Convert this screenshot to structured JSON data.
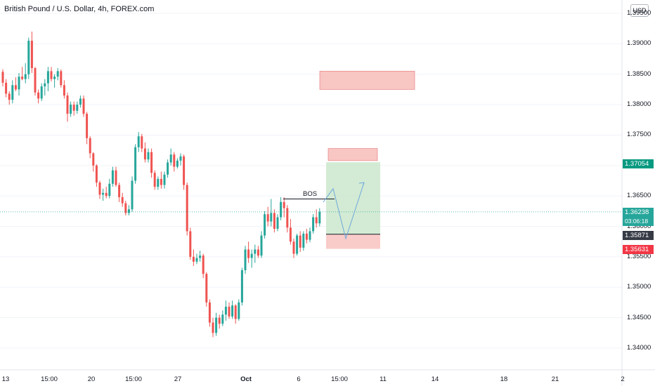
{
  "title": "British Pound / U.S. Dollar, 4h, FOREX.com",
  "currency": "USD",
  "annotation_label": "BOS",
  "colors": {
    "up": "#26a69a",
    "down": "#ef5350",
    "target_zone": "#c8e6c9",
    "stop_zone": "#f8c6c3",
    "current_price": "#26a69a",
    "entry_price": "#363a45",
    "stop_price": "#f23645",
    "target_price": "#089981",
    "path": "#6fa8dc"
  },
  "y_axis": {
    "labels": [
      "1.39500",
      "1.39000",
      "1.38500",
      "1.38000",
      "1.37500",
      "1.37000",
      "1.36500",
      "1.36000",
      "1.35500",
      "1.35000",
      "1.34500",
      "1.34000"
    ]
  },
  "x_axis": {
    "labels": [
      "13",
      "15:00",
      "20",
      "15:00",
      "27",
      "Oct",
      "6",
      "15:00",
      "11",
      "14",
      "18",
      "21",
      "2"
    ]
  },
  "price_labels": {
    "target": "1.37054",
    "current": "1.36238",
    "countdown": "03:06:18",
    "entry": "1.35871",
    "stop": "1.35631"
  },
  "chart_data": {
    "type": "candlestick",
    "symbol": "GBPUSD",
    "interval": "4h",
    "ylim": [
      1.3375,
      1.3982
    ],
    "candles": [
      [
        1.3854,
        1.3858,
        1.383,
        1.3836
      ],
      [
        1.3836,
        1.3842,
        1.3812,
        1.3818
      ],
      [
        1.3818,
        1.3822,
        1.38,
        1.3808
      ],
      [
        1.3808,
        1.384,
        1.3802,
        1.3832
      ],
      [
        1.3832,
        1.3845,
        1.3822,
        1.3825
      ],
      [
        1.3825,
        1.3852,
        1.3815,
        1.3846
      ],
      [
        1.3846,
        1.3862,
        1.384,
        1.3842
      ],
      [
        1.3842,
        1.3868,
        1.3835,
        1.385
      ],
      [
        1.385,
        1.391,
        1.3842,
        1.3905
      ],
      [
        1.3905,
        1.392,
        1.3852,
        1.386
      ],
      [
        1.386,
        1.3862,
        1.3815,
        1.382
      ],
      [
        1.382,
        1.3825,
        1.3802,
        1.381
      ],
      [
        1.381,
        1.3835,
        1.3806,
        1.383
      ],
      [
        1.383,
        1.3842,
        1.3815,
        1.3835
      ],
      [
        1.3835,
        1.3862,
        1.3822,
        1.3855
      ],
      [
        1.3855,
        1.3862,
        1.3838,
        1.3842
      ],
      [
        1.3842,
        1.385,
        1.3828,
        1.3846
      ],
      [
        1.3846,
        1.386,
        1.384,
        1.3855
      ],
      [
        1.3855,
        1.3858,
        1.3828,
        1.3832
      ],
      [
        1.3832,
        1.384,
        1.381,
        1.3815
      ],
      [
        1.3815,
        1.382,
        1.3772,
        1.3785
      ],
      [
        1.3785,
        1.3805,
        1.378,
        1.38
      ],
      [
        1.38,
        1.3805,
        1.3782,
        1.379
      ],
      [
        1.379,
        1.3805,
        1.3785,
        1.38
      ],
      [
        1.38,
        1.3815,
        1.3795,
        1.381
      ],
      [
        1.381,
        1.3815,
        1.378,
        1.3785
      ],
      [
        1.3785,
        1.3788,
        1.3735,
        1.3745
      ],
      [
        1.3745,
        1.3748,
        1.3712,
        1.372
      ],
      [
        1.372,
        1.3722,
        1.369,
        1.37
      ],
      [
        1.37,
        1.3702,
        1.3665,
        1.3672
      ],
      [
        1.3672,
        1.3675,
        1.3645,
        1.3652
      ],
      [
        1.3652,
        1.3662,
        1.3642,
        1.3655
      ],
      [
        1.3655,
        1.3665,
        1.3646,
        1.365
      ],
      [
        1.365,
        1.3678,
        1.3646,
        1.367
      ],
      [
        1.367,
        1.3698,
        1.3665,
        1.3692
      ],
      [
        1.3692,
        1.3698,
        1.3665,
        1.3668
      ],
      [
        1.3668,
        1.3672,
        1.364,
        1.3648
      ],
      [
        1.3648,
        1.3655,
        1.3632,
        1.3638
      ],
      [
        1.3638,
        1.3642,
        1.3618,
        1.3622
      ],
      [
        1.3622,
        1.3635,
        1.3618,
        1.3628
      ],
      [
        1.3628,
        1.3682,
        1.3624,
        1.3675
      ],
      [
        1.3675,
        1.3735,
        1.367,
        1.373
      ],
      [
        1.373,
        1.3755,
        1.3722,
        1.3748
      ],
      [
        1.3748,
        1.3752,
        1.3722,
        1.3728
      ],
      [
        1.3728,
        1.3738,
        1.3705,
        1.371
      ],
      [
        1.371,
        1.3728,
        1.3705,
        1.3722
      ],
      [
        1.3722,
        1.3728,
        1.368,
        1.3688
      ],
      [
        1.3688,
        1.3692,
        1.366,
        1.3665
      ],
      [
        1.3665,
        1.3682,
        1.366,
        1.3678
      ],
      [
        1.3678,
        1.369,
        1.3662,
        1.3668
      ],
      [
        1.3668,
        1.369,
        1.3662,
        1.3685
      ],
      [
        1.3685,
        1.371,
        1.368,
        1.3705
      ],
      [
        1.3705,
        1.3728,
        1.37,
        1.3718
      ],
      [
        1.3718,
        1.3722,
        1.369,
        1.3698
      ],
      [
        1.3698,
        1.3712,
        1.3695,
        1.3708
      ],
      [
        1.3708,
        1.372,
        1.37,
        1.3715
      ],
      [
        1.3715,
        1.3718,
        1.366,
        1.3668
      ],
      [
        1.3668,
        1.3672,
        1.3585,
        1.3592
      ],
      [
        1.3592,
        1.3598,
        1.3545,
        1.355
      ],
      [
        1.355,
        1.3562,
        1.3535,
        1.3542
      ],
      [
        1.3542,
        1.3555,
        1.3538,
        1.3548
      ],
      [
        1.3548,
        1.356,
        1.3542,
        1.3552
      ],
      [
        1.3552,
        1.3555,
        1.3515,
        1.3522
      ],
      [
        1.3522,
        1.3525,
        1.3468,
        1.3475
      ],
      [
        1.3475,
        1.348,
        1.3435,
        1.3442
      ],
      [
        1.3442,
        1.345,
        1.3418,
        1.3425
      ],
      [
        1.3425,
        1.3458,
        1.342,
        1.345
      ],
      [
        1.345,
        1.3455,
        1.3432,
        1.344
      ],
      [
        1.344,
        1.3462,
        1.3436,
        1.3455
      ],
      [
        1.3455,
        1.3478,
        1.3445,
        1.3468
      ],
      [
        1.3468,
        1.3475,
        1.3448,
        1.3452
      ],
      [
        1.3452,
        1.3478,
        1.3448,
        1.347
      ],
      [
        1.347,
        1.3472,
        1.344,
        1.3448
      ],
      [
        1.3448,
        1.348,
        1.3445,
        1.3475
      ],
      [
        1.3475,
        1.3532,
        1.347,
        1.3528
      ],
      [
        1.3528,
        1.3568,
        1.3522,
        1.3562
      ],
      [
        1.3562,
        1.3575,
        1.354,
        1.3548
      ],
      [
        1.3548,
        1.3562,
        1.3532,
        1.3555
      ],
      [
        1.3555,
        1.357,
        1.354,
        1.3562
      ],
      [
        1.3562,
        1.3568,
        1.3548,
        1.3552
      ],
      [
        1.3552,
        1.3592,
        1.3548,
        1.3585
      ],
      [
        1.3585,
        1.3625,
        1.358,
        1.362
      ],
      [
        1.362,
        1.3632,
        1.36,
        1.3608
      ],
      [
        1.3608,
        1.3645,
        1.36,
        1.3622
      ],
      [
        1.3622,
        1.3628,
        1.359,
        1.3596
      ],
      [
        1.3596,
        1.362,
        1.3592,
        1.3615
      ],
      [
        1.3615,
        1.3648,
        1.361,
        1.364
      ],
      [
        1.364,
        1.3648,
        1.3615,
        1.363
      ],
      [
        1.363,
        1.3635,
        1.359,
        1.3598
      ],
      [
        1.3598,
        1.3612,
        1.357,
        1.3575
      ],
      [
        1.3575,
        1.358,
        1.3548,
        1.3555
      ],
      [
        1.3555,
        1.3588,
        1.3552,
        1.3585
      ],
      [
        1.3585,
        1.3592,
        1.3558,
        1.3565
      ],
      [
        1.3565,
        1.3592,
        1.356,
        1.3588
      ],
      [
        1.3588,
        1.3596,
        1.3572,
        1.3578
      ],
      [
        1.3578,
        1.3598,
        1.3574,
        1.3592
      ],
      [
        1.3592,
        1.362,
        1.3588,
        1.3615
      ],
      [
        1.3615,
        1.3628,
        1.3598,
        1.3605
      ],
      [
        1.3605,
        1.363,
        1.36,
        1.3624
      ]
    ],
    "current_price": 1.36238,
    "position": {
      "side": "long",
      "entry": 1.35871,
      "stop": 1.35631,
      "target": 1.37054
    },
    "supply_zones": [
      [
        1.3825,
        1.3855
      ],
      [
        1.3708,
        1.3728
      ]
    ],
    "bos_level": 1.3645,
    "projected_path": [
      1.364,
      1.3662,
      1.358,
      1.3672
    ]
  }
}
